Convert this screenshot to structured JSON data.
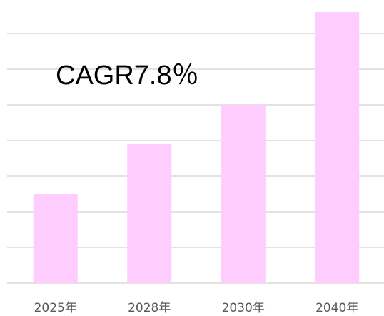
{
  "chart_data": {
    "type": "bar",
    "categories": [
      "2025年",
      "2028年",
      "2030年",
      "2040年"
    ],
    "values": [
      2.5,
      3.9,
      5.0,
      7.6
    ],
    "color": "#ffccff",
    "ylim": [
      0,
      7.6
    ],
    "yticks": [
      0,
      1,
      2,
      3,
      4,
      5,
      6,
      7
    ],
    "grid": true,
    "annotation": "CAGR7.8％"
  }
}
